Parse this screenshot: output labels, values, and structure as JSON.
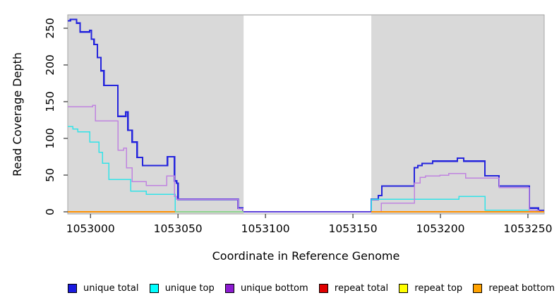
{
  "page": {
    "background": "#ffffff"
  },
  "axes": {
    "ylabel": "Read Coverage Depth",
    "xlabel": "Coordinate in Reference Genome"
  },
  "legend": {
    "items": [
      {
        "label": "unique total",
        "color": "#1a1ae0"
      },
      {
        "label": "unique top",
        "color": "#00ffff"
      },
      {
        "label": "unique bottom",
        "color": "#8c1bd1"
      },
      {
        "label": "repeat total",
        "color": "#e00000"
      },
      {
        "label": "repeat top",
        "color": "#ffff00"
      },
      {
        "label": "repeat bottom",
        "color": "#ffa200"
      }
    ]
  },
  "chart_data": {
    "type": "line",
    "subtype": "step-after-coverage",
    "title": "",
    "xlabel": "Coordinate in Reference Genome",
    "ylabel": "Read Coverage Depth",
    "x_domain": [
      1052987,
      1053259.3
    ],
    "y_domain": [
      0,
      268
    ],
    "xticks": [
      1053000,
      1053050,
      1053100,
      1053150,
      1053200,
      1053250
    ],
    "yticks": [
      0,
      50,
      100,
      150,
      200,
      250
    ],
    "grid": "off",
    "legend_position": "bottom",
    "plot_background": "#d9d9d9",
    "plot_border_color": "#a6a6a6",
    "masked_white_region": {
      "from": 1053087.5,
      "to": 1053160.5
    },
    "zero_line_segments": [
      {
        "from": 1052987,
        "to": 1053048.4,
        "color": "#ff9100",
        "width": 2.0
      },
      {
        "from": 1053048.4,
        "to": 1053087.5,
        "color": "#8fd48f",
        "width": 1.6
      },
      {
        "from": 1053087.5,
        "to": 1053160.5,
        "color": "#5b3fd8",
        "width": 2.0
      },
      {
        "from": 1053160.5,
        "to": 1053259.3,
        "color": "#ff9100",
        "width": 2.0
      }
    ],
    "series": [
      {
        "name": "unique total",
        "line_color": "#2424dd",
        "line_width": 2.2,
        "points": [
          [
            1052987,
            260
          ],
          [
            1052988.5,
            262
          ],
          [
            1052992,
            257
          ],
          [
            1052994,
            245
          ],
          [
            1052999.5,
            247
          ],
          [
            1053000.5,
            235
          ],
          [
            1053002,
            228
          ],
          [
            1053004,
            210
          ],
          [
            1053006,
            192
          ],
          [
            1053007.7,
            172
          ],
          [
            1053015.7,
            130
          ],
          [
            1053020.2,
            136
          ],
          [
            1053021.4,
            111
          ],
          [
            1053023.8,
            95
          ],
          [
            1053026.6,
            74
          ],
          [
            1053029.8,
            63
          ],
          [
            1053044,
            75
          ],
          [
            1053048,
            42
          ],
          [
            1053049.2,
            39
          ],
          [
            1053050,
            17
          ],
          [
            1053084.3,
            5
          ],
          [
            1053087.1,
            0
          ],
          [
            1053160.5,
            17
          ],
          [
            1053164.5,
            22
          ],
          [
            1053166.5,
            35
          ],
          [
            1053185.1,
            60
          ],
          [
            1053187.1,
            63
          ],
          [
            1053189.5,
            66
          ],
          [
            1053195.6,
            69
          ],
          [
            1053209.7,
            73
          ],
          [
            1053213.3,
            69
          ],
          [
            1053225.4,
            49
          ],
          [
            1053233.5,
            35
          ],
          [
            1053250.8,
            5
          ],
          [
            1053256,
            2
          ],
          [
            1053259.3,
            2
          ]
        ]
      },
      {
        "name": "unique top",
        "line_color": "#33e3e8",
        "line_width": 1.5,
        "points": [
          [
            1052987,
            116
          ],
          [
            1052990,
            113
          ],
          [
            1052992.7,
            109
          ],
          [
            1052999.6,
            95
          ],
          [
            1053004.8,
            81
          ],
          [
            1053006.9,
            66
          ],
          [
            1053010.5,
            44
          ],
          [
            1053023,
            28
          ],
          [
            1053031.9,
            24
          ],
          [
            1053048.4,
            0
          ],
          [
            1053160.5,
            17
          ],
          [
            1053210.5,
            21
          ],
          [
            1053225.4,
            2
          ],
          [
            1053254.8,
            0
          ],
          [
            1053259.3,
            0
          ]
        ]
      },
      {
        "name": "unique bottom",
        "line_color": "#c084e0",
        "line_width": 1.5,
        "points": [
          [
            1052987,
            143
          ],
          [
            1053001.2,
            145
          ],
          [
            1053002.8,
            124
          ],
          [
            1053015.7,
            84
          ],
          [
            1053018.9,
            87
          ],
          [
            1053020.6,
            60
          ],
          [
            1053023.8,
            41
          ],
          [
            1053031.9,
            36
          ],
          [
            1053043.5,
            49
          ],
          [
            1053048,
            21
          ],
          [
            1053049.2,
            17
          ],
          [
            1053084.3,
            4
          ],
          [
            1053087.1,
            0
          ],
          [
            1053166.1,
            12
          ],
          [
            1053185.1,
            39
          ],
          [
            1053188.3,
            47
          ],
          [
            1053191.5,
            49
          ],
          [
            1053199.6,
            50
          ],
          [
            1053204.8,
            52
          ],
          [
            1053214.5,
            46
          ],
          [
            1053233.5,
            33
          ],
          [
            1053250.8,
            2
          ],
          [
            1053256,
            1
          ],
          [
            1053259.3,
            1
          ]
        ]
      },
      {
        "name": "repeat total",
        "line_color": "#e00000",
        "line_width": 1.4,
        "points": [
          [
            1052987,
            0
          ],
          [
            1053259.3,
            0
          ]
        ]
      },
      {
        "name": "repeat top",
        "line_color": "#ffff00",
        "line_width": 1.4,
        "points": [
          [
            1052987,
            0
          ],
          [
            1053259.3,
            0
          ]
        ]
      },
      {
        "name": "repeat bottom",
        "line_color": "#ffa200",
        "line_width": 1.4,
        "points": [
          [
            1052987,
            0
          ],
          [
            1053259.3,
            0
          ]
        ]
      }
    ]
  }
}
